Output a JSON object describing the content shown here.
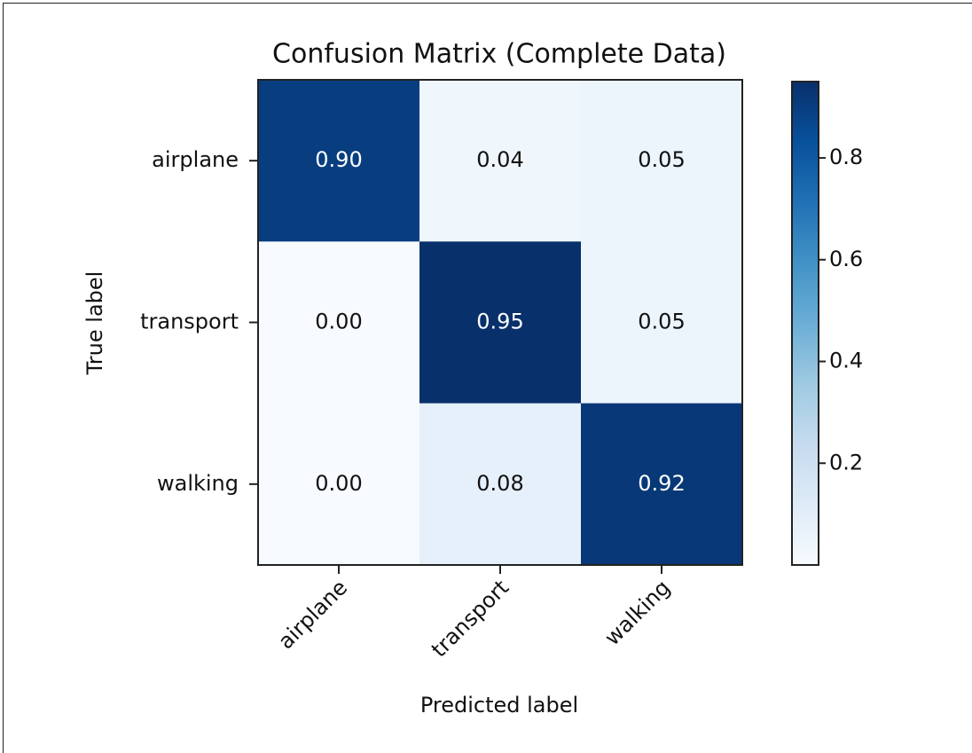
{
  "chart_data": {
    "type": "heatmap",
    "title": "Confusion Matrix (Complete Data)",
    "xlabel": "Predicted label",
    "ylabel": "True label",
    "categories": [
      "airplane",
      "transport",
      "walking"
    ],
    "y_categories": [
      "airplane",
      "transport",
      "walking"
    ],
    "values": [
      [
        0.9,
        0.04,
        0.05
      ],
      [
        0.0,
        0.95,
        0.05
      ],
      [
        0.0,
        0.08,
        0.92
      ]
    ],
    "value_labels": [
      [
        "0.90",
        "0.04",
        "0.05"
      ],
      [
        "0.00",
        "0.95",
        "0.05"
      ],
      [
        "0.00",
        "0.08",
        "0.92"
      ]
    ],
    "colormap": "Blues",
    "clim": [
      0,
      0.95
    ],
    "cticks": [
      0.2,
      0.4,
      0.6,
      0.8
    ]
  }
}
